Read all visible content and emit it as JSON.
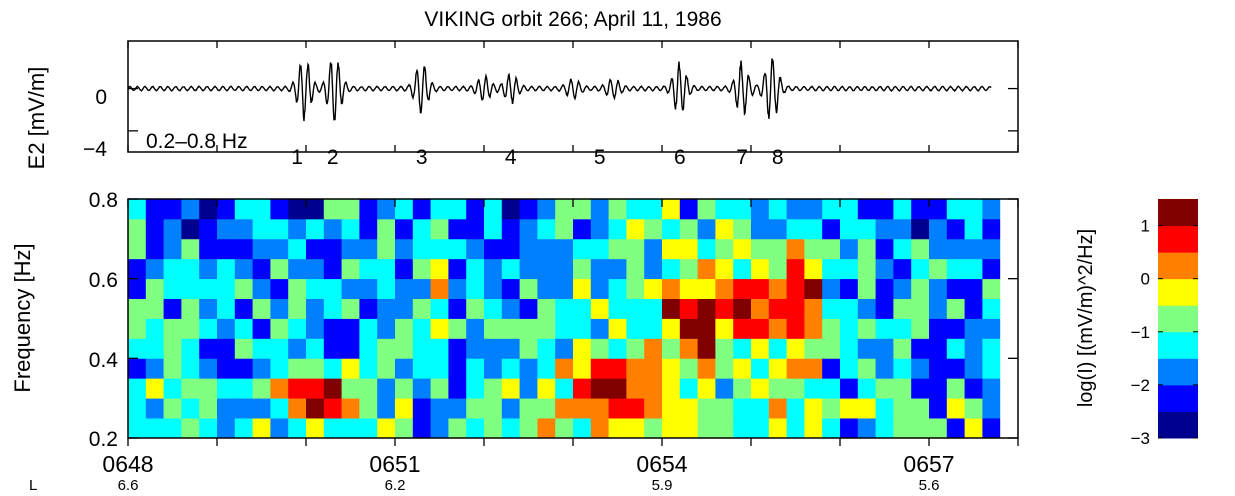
{
  "title": "VIKING orbit 266; April 11, 1986",
  "colors": {
    "colormap": [
      "#00008f",
      "#0000ff",
      "#0080ff",
      "#00ffff",
      "#80ff80",
      "#ffff00",
      "#ff8000",
      "#ff0000",
      "#800000"
    ],
    "trace": "#000000"
  },
  "chart_data": [
    {
      "type": "line",
      "name": "waveform",
      "ylabel": "E2 [mV/m]",
      "yticks": [
        "0",
        "−4"
      ],
      "ylim": [
        -6,
        4.5
      ],
      "filter_label": "0.2–0.8 Hz",
      "event_labels": [
        "1",
        "2",
        "3",
        "4",
        "5",
        "6",
        "7",
        "8"
      ],
      "event_times_min": [
        1.9,
        2.3,
        3.3,
        4.3,
        5.3,
        6.2,
        6.9,
        7.3
      ],
      "bursts": [
        {
          "t": 1.98,
          "amp": 3.0
        },
        {
          "t": 2.32,
          "amp": 3.4
        },
        {
          "t": 3.3,
          "amp": 2.4
        },
        {
          "t": 4.0,
          "amp": 1.1
        },
        {
          "t": 4.3,
          "amp": 1.3
        },
        {
          "t": 5.0,
          "amp": 0.8
        },
        {
          "t": 5.45,
          "amp": 0.9
        },
        {
          "t": 6.2,
          "amp": 2.5
        },
        {
          "t": 6.9,
          "amp": 2.5
        },
        {
          "t": 7.23,
          "amp": 3.2
        }
      ],
      "background_amp": 0.22,
      "xlim_min": [
        0,
        10
      ]
    },
    {
      "type": "heatmap",
      "name": "spectrogram",
      "ylabel": "Frequency [Hz]",
      "yticks": [
        "0.2",
        "0.4",
        "0.6",
        "0.8"
      ],
      "ylim": [
        0.2,
        0.8
      ],
      "xlim_min": [
        0,
        10
      ],
      "n_time_bins": 50,
      "freq_bins_hz": [
        0.2,
        0.25,
        0.3,
        0.35,
        0.4,
        0.45,
        0.5,
        0.55,
        0.6,
        0.65,
        0.7,
        0.75,
        0.8
      ],
      "x_ticklabels": [
        "0648",
        "0651",
        "0654",
        "0657"
      ],
      "x_ticks_min": [
        0,
        3,
        6,
        9
      ],
      "L_label": "L",
      "L_values": [
        "6.6",
        "6.2",
        "5.9",
        "5.6"
      ],
      "hot_spots": [
        {
          "t": 2.1,
          "f": 0.3,
          "v": 3.0,
          "st": 0.45,
          "sf": 0.06
        },
        {
          "t": 3.45,
          "f": 0.55,
          "v": 1.4,
          "st": 0.12,
          "sf": 0.12
        },
        {
          "t": 5.4,
          "f": 0.32,
          "v": 1.6,
          "st": 0.5,
          "sf": 0.08
        },
        {
          "t": 6.35,
          "f": 0.5,
          "v": 2.7,
          "st": 0.35,
          "sf": 0.1
        },
        {
          "t": 7.0,
          "f": 0.52,
          "v": 2.0,
          "st": 0.3,
          "sf": 0.09
        },
        {
          "t": 7.6,
          "f": 0.55,
          "v": 2.4,
          "st": 0.25,
          "sf": 0.14
        }
      ],
      "base_level": -1.8,
      "colorbar": {
        "label": "log(I) [(mV/m)^2/Hz]",
        "range": [
          -3,
          1.5
        ],
        "ticks": [
          "1",
          "0",
          "−1",
          "−2",
          "−3"
        ],
        "tick_values": [
          1,
          0,
          -1,
          -2,
          -3
        ]
      }
    }
  ]
}
